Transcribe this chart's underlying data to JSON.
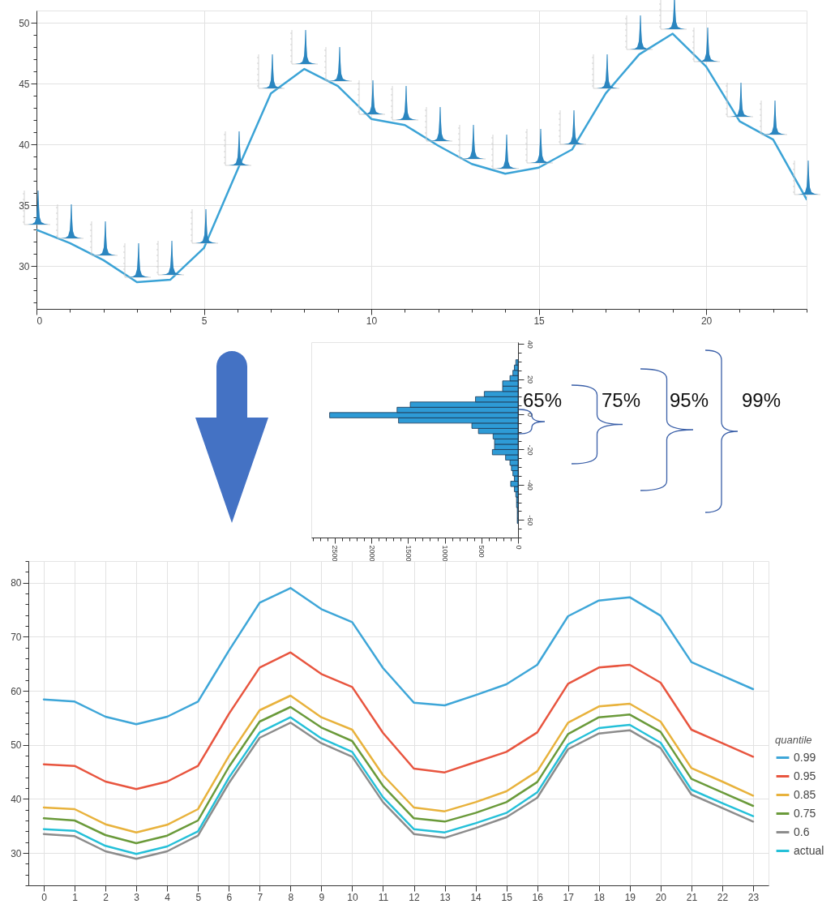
{
  "chart_data": [
    {
      "type": "line",
      "x": [
        0,
        1,
        2,
        3,
        4,
        5,
        6,
        7,
        8,
        9,
        10,
        11,
        12,
        13,
        14,
        15,
        16,
        17,
        18,
        19,
        20,
        21,
        22,
        23
      ],
      "series": [
        {
          "color": "#3ba3d6",
          "values": [
            33.0,
            31.9,
            30.5,
            28.7,
            28.9,
            31.5,
            37.9,
            44.2,
            46.2,
            44.8,
            42.1,
            41.6,
            39.9,
            38.4,
            37.6,
            38.1,
            39.6,
            44.2,
            47.4,
            49.1,
            46.4,
            41.9,
            40.4,
            35.5
          ]
        }
      ],
      "xlim": [
        0,
        23
      ],
      "xticks": [
        0,
        {
          "value": 1,
          "label": null
        },
        {
          "value": 2,
          "label": null
        },
        {
          "value": 3,
          "label": null
        },
        {
          "value": 4,
          "label": null
        },
        5,
        {
          "value": 6,
          "label": null
        },
        {
          "value": 7,
          "label": null
        },
        {
          "value": 8,
          "label": null
        },
        {
          "value": 9,
          "label": null
        },
        10,
        {
          "value": 11,
          "label": null
        },
        {
          "value": 12,
          "label": null
        },
        {
          "value": 13,
          "label": null
        },
        {
          "value": 14,
          "label": null
        },
        15,
        {
          "value": 16,
          "label": null
        },
        {
          "value": 17,
          "label": null
        },
        {
          "value": 18,
          "label": null
        },
        {
          "value": 19,
          "label": null
        },
        20,
        {
          "value": 21,
          "label": null
        },
        {
          "value": 22,
          "label": null
        },
        {
          "value": 23,
          "label": null
        }
      ],
      "ylim": [
        26.5,
        51
      ],
      "yticks": [
        {
          "value": 27,
          "label": null
        },
        {
          "value": 28,
          "label": null
        },
        {
          "value": 29,
          "label": null
        },
        30,
        {
          "value": 31,
          "label": null
        },
        {
          "value": 32,
          "label": null
        },
        {
          "value": 33,
          "label": null
        },
        {
          "value": 34,
          "label": null
        },
        35,
        {
          "value": 36,
          "label": null
        },
        {
          "value": 37,
          "label": null
        },
        {
          "value": 38,
          "label": null
        },
        {
          "value": 39,
          "label": null
        },
        40,
        {
          "value": 41,
          "label": null
        },
        {
          "value": 42,
          "label": null
        },
        {
          "value": 43,
          "label": null
        },
        {
          "value": 44,
          "label": null
        },
        45,
        {
          "value": 46,
          "label": null
        },
        {
          "value": 47,
          "label": null
        },
        {
          "value": 48,
          "label": null
        },
        {
          "value": 49,
          "label": null
        },
        50
      ],
      "grid": true,
      "marker": "none"
    },
    {
      "type": "histogram",
      "orientation": "horizontal",
      "color": "#2e9bd6",
      "bins": [
        -62,
        -59,
        -56,
        -53,
        -50,
        -47,
        -44,
        -41,
        -38,
        -35,
        -32,
        -29,
        -26,
        -23,
        -20,
        -17,
        -14,
        -11,
        -8,
        -5,
        -2,
        1,
        4,
        7,
        10,
        13,
        16,
        19,
        22,
        25,
        28,
        31
      ],
      "values": [
        10,
        10,
        10,
        20,
        20,
        30,
        50,
        100,
        50,
        70,
        90,
        110,
        170,
        350,
        320,
        320,
        340,
        540,
        630,
        1630,
        2570,
        1650,
        1470,
        580,
        460,
        210,
        210,
        110,
        70,
        50,
        30
      ],
      "xlim": [
        2820,
        0
      ],
      "xticks": [
        0,
        {
          "value": 100,
          "label": null
        },
        {
          "value": 200,
          "label": null
        },
        {
          "value": 300,
          "label": null
        },
        {
          "value": 400,
          "label": null
        },
        500,
        {
          "value": 600,
          "label": null
        },
        {
          "value": 700,
          "label": null
        },
        {
          "value": 800,
          "label": null
        },
        {
          "value": 900,
          "label": null
        },
        1000,
        {
          "value": 1100,
          "label": null
        },
        {
          "value": 1200,
          "label": null
        },
        {
          "value": 1300,
          "label": null
        },
        {
          "value": 1400,
          "label": null
        },
        1500,
        {
          "value": 1600,
          "label": null
        },
        {
          "value": 1700,
          "label": null
        },
        {
          "value": 1800,
          "label": null
        },
        {
          "value": 1900,
          "label": null
        },
        2000,
        {
          "value": 2100,
          "label": null
        },
        {
          "value": 2200,
          "label": null
        },
        {
          "value": 2300,
          "label": null
        },
        {
          "value": 2400,
          "label": null
        },
        2500,
        {
          "value": 2600,
          "label": null
        },
        {
          "value": 2700,
          "label": null
        },
        {
          "value": 2800,
          "label": null
        }
      ],
      "ylim": [
        -70,
        41
      ],
      "yticks": [
        {
          "value": -70,
          "label": null
        },
        {
          "value": -65,
          "label": null
        },
        -60,
        {
          "value": -55,
          "label": null
        },
        {
          "value": -50,
          "label": null
        },
        {
          "value": -45,
          "label": null
        },
        -40,
        {
          "value": -35,
          "label": null
        },
        {
          "value": -30,
          "label": null
        },
        {
          "value": -25,
          "label": null
        },
        -20,
        {
          "value": -15,
          "label": null
        },
        {
          "value": -10,
          "label": null
        },
        {
          "value": -5,
          "label": null
        },
        0,
        {
          "value": 5,
          "label": null
        },
        {
          "value": 10,
          "label": null
        },
        {
          "value": 15,
          "label": null
        },
        20,
        {
          "value": 25,
          "label": null
        },
        {
          "value": 30,
          "label": null
        },
        {
          "value": 35,
          "label": null
        },
        40
      ],
      "annotations": [
        "65%",
        "75%",
        "95%",
        "99%"
      ]
    },
    {
      "type": "line",
      "x": [
        0,
        1,
        2,
        3,
        4,
        5,
        6,
        7,
        8,
        9,
        10,
        11,
        12,
        13,
        14,
        15,
        16,
        17,
        18,
        19,
        20,
        21,
        22,
        23
      ],
      "legend": "bottom right",
      "legend_title": "quantile",
      "grid": true,
      "marker": "none",
      "xlim": [
        -0.5,
        23.5
      ],
      "xticks": [
        0,
        1,
        2,
        3,
        4,
        5,
        6,
        7,
        8,
        9,
        10,
        11,
        12,
        13,
        14,
        15,
        16,
        17,
        18,
        19,
        20,
        21,
        22,
        23
      ],
      "ylim": [
        24,
        84
      ],
      "yticks": [
        {
          "value": 24,
          "label": null
        },
        {
          "value": 26,
          "label": null
        },
        {
          "value": 28,
          "label": null
        },
        30,
        {
          "value": 32,
          "label": null
        },
        {
          "value": 34,
          "label": null
        },
        {
          "value": 36,
          "label": null
        },
        {
          "value": 38,
          "label": null
        },
        40,
        {
          "value": 42,
          "label": null
        },
        {
          "value": 44,
          "label": null
        },
        {
          "value": 46,
          "label": null
        },
        {
          "value": 48,
          "label": null
        },
        50,
        {
          "value": 52,
          "label": null
        },
        {
          "value": 54,
          "label": null
        },
        {
          "value": 56,
          "label": null
        },
        {
          "value": 58,
          "label": null
        },
        60,
        {
          "value": 62,
          "label": null
        },
        {
          "value": 64,
          "label": null
        },
        {
          "value": 66,
          "label": null
        },
        {
          "value": 68,
          "label": null
        },
        70,
        {
          "value": 72,
          "label": null
        },
        {
          "value": 74,
          "label": null
        },
        {
          "value": 76,
          "label": null
        },
        {
          "value": 78,
          "label": null
        },
        80,
        {
          "value": 82,
          "label": null
        },
        {
          "value": 84,
          "label": null
        }
      ],
      "series": [
        {
          "name": "0.99",
          "color": "#3ea6d8",
          "values": [
            58.4,
            58.0,
            55.2,
            53.8,
            55.2,
            58.0,
            67.4,
            76.3,
            79.0,
            75.1,
            72.7,
            64.2,
            57.8,
            57.3,
            59.2,
            61.2,
            64.8,
            73.8,
            76.7,
            77.3,
            73.9,
            65.3,
            62.8,
            60.3
          ]
        },
        {
          "name": "0.95",
          "color": "#e8553f",
          "values": [
            46.4,
            46.1,
            43.2,
            41.8,
            43.2,
            46.1,
            55.7,
            64.3,
            67.1,
            63.1,
            60.7,
            52.2,
            45.6,
            44.9,
            46.8,
            48.7,
            52.3,
            61.3,
            64.3,
            64.8,
            61.5,
            52.8,
            50.3,
            47.8
          ]
        },
        {
          "name": "0.85",
          "color": "#e8b23c",
          "values": [
            38.4,
            38.1,
            35.3,
            33.8,
            35.2,
            38.1,
            47.9,
            56.4,
            59.1,
            55.1,
            52.8,
            44.4,
            38.4,
            37.7,
            39.4,
            41.4,
            45.1,
            54.1,
            57.1,
            57.6,
            54.3,
            45.7,
            43.2,
            40.6
          ]
        },
        {
          "name": "0.75",
          "color": "#6a9a3a",
          "values": [
            36.4,
            36.0,
            33.3,
            31.8,
            33.2,
            36.0,
            45.9,
            54.3,
            57.0,
            53.2,
            50.7,
            42.4,
            36.4,
            35.8,
            37.4,
            39.4,
            43.1,
            52.0,
            55.1,
            55.6,
            52.4,
            43.7,
            41.2,
            38.7
          ]
        },
        {
          "name": "0.6",
          "color": "#8c8c8c",
          "values": [
            33.5,
            33.1,
            30.3,
            28.9,
            30.3,
            33.2,
            42.9,
            51.3,
            54.1,
            50.3,
            47.8,
            39.4,
            33.5,
            32.8,
            34.6,
            36.6,
            40.2,
            49.2,
            52.1,
            52.7,
            49.4,
            40.8,
            38.3,
            35.8
          ]
        },
        {
          "name": "actual",
          "color": "#25c0d8",
          "values": [
            34.4,
            34.1,
            31.3,
            29.8,
            31.2,
            34.0,
            43.9,
            52.3,
            55.1,
            51.2,
            48.7,
            40.3,
            34.4,
            33.8,
            35.5,
            37.4,
            41.2,
            50.1,
            53.1,
            53.7,
            50.4,
            41.7,
            39.2,
            36.8
          ]
        }
      ]
    }
  ]
}
